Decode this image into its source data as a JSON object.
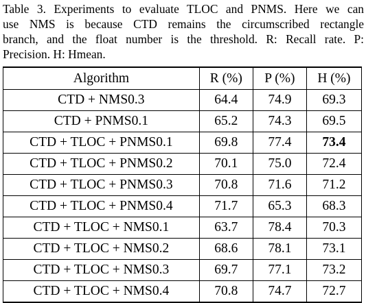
{
  "caption": {
    "lines": [
      "Table 3. Experiments to evaluate TLOC and PNMS. Here we can",
      "use NMS is because CTD remains the circumscribed rectangle",
      "branch, and the float number is the threshold.  R: Recall rate.  P:",
      "Precision. H: Hmean."
    ]
  },
  "table": {
    "headers": [
      "Algorithm",
      "R (%)",
      "P (%)",
      "H (%)"
    ],
    "rows": [
      {
        "algorithm": "CTD + NMS0.3",
        "r": "64.4",
        "p": "74.9",
        "h": "69.3",
        "h_bold": false
      },
      {
        "algorithm": "CTD + PNMS0.1",
        "r": "65.2",
        "p": "74.3",
        "h": "69.5",
        "h_bold": false
      },
      {
        "algorithm": "CTD + TLOC + PNMS0.1",
        "r": "69.8",
        "p": "77.4",
        "h": "73.4",
        "h_bold": true
      },
      {
        "algorithm": "CTD + TLOC + PNMS0.2",
        "r": "70.1",
        "p": "75.0",
        "h": "72.4",
        "h_bold": false
      },
      {
        "algorithm": "CTD + TLOC + PNMS0.3",
        "r": "70.8",
        "p": "71.6",
        "h": "71.2",
        "h_bold": false
      },
      {
        "algorithm": "CTD + TLOC + PNMS0.4",
        "r": "71.7",
        "p": "65.3",
        "h": "68.3",
        "h_bold": false
      },
      {
        "algorithm": "CTD + TLOC + NMS0.1",
        "r": "63.7",
        "p": "78.4",
        "h": "70.3",
        "h_bold": false
      },
      {
        "algorithm": "CTD + TLOC + NMS0.2",
        "r": "68.6",
        "p": "78.1",
        "h": "73.1",
        "h_bold": false
      },
      {
        "algorithm": "CTD + TLOC + NMS0.3",
        "r": "69.7",
        "p": "77.1",
        "h": "73.2",
        "h_bold": false
      },
      {
        "algorithm": "CTD + TLOC + NMS0.4",
        "r": "70.8",
        "p": "74.7",
        "h": "72.7",
        "h_bold": false
      }
    ]
  }
}
